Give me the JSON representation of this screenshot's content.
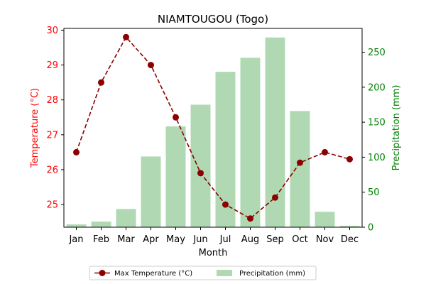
{
  "chart_data": {
    "type": "bar",
    "title": "NIAMTOUGOU (Togo)",
    "xlabel": "Month",
    "categories": [
      "Jan",
      "Feb",
      "Mar",
      "Apr",
      "May",
      "Jun",
      "Jul",
      "Aug",
      "Sep",
      "Oct",
      "Nov",
      "Dec"
    ],
    "series": [
      {
        "name": "Max Temperature (°C)",
        "type": "line",
        "axis": "left",
        "color": "#8b0000",
        "values": [
          26.5,
          28.5,
          29.8,
          29.0,
          27.5,
          25.9,
          25.0,
          24.6,
          25.2,
          26.2,
          26.5,
          26.3
        ]
      },
      {
        "name": "Precipitation (mm)",
        "type": "bar",
        "axis": "right",
        "color": "#b0d9b3",
        "values": [
          4,
          8,
          26,
          101,
          144,
          175,
          222,
          242,
          271,
          166,
          22,
          2
        ]
      }
    ],
    "y_left": {
      "label": "Temperature (°C)",
      "color": "#ff0000",
      "lim": [
        24.35,
        30.05
      ],
      "ticks": [
        25,
        26,
        27,
        28,
        29,
        30
      ]
    },
    "y_right": {
      "label": "Precipitation (mm)",
      "color": "#008000",
      "lim": [
        0,
        284
      ],
      "ticks": [
        0,
        50,
        100,
        150,
        200,
        250
      ]
    },
    "grid": false,
    "legend_position": "bottom-center"
  }
}
